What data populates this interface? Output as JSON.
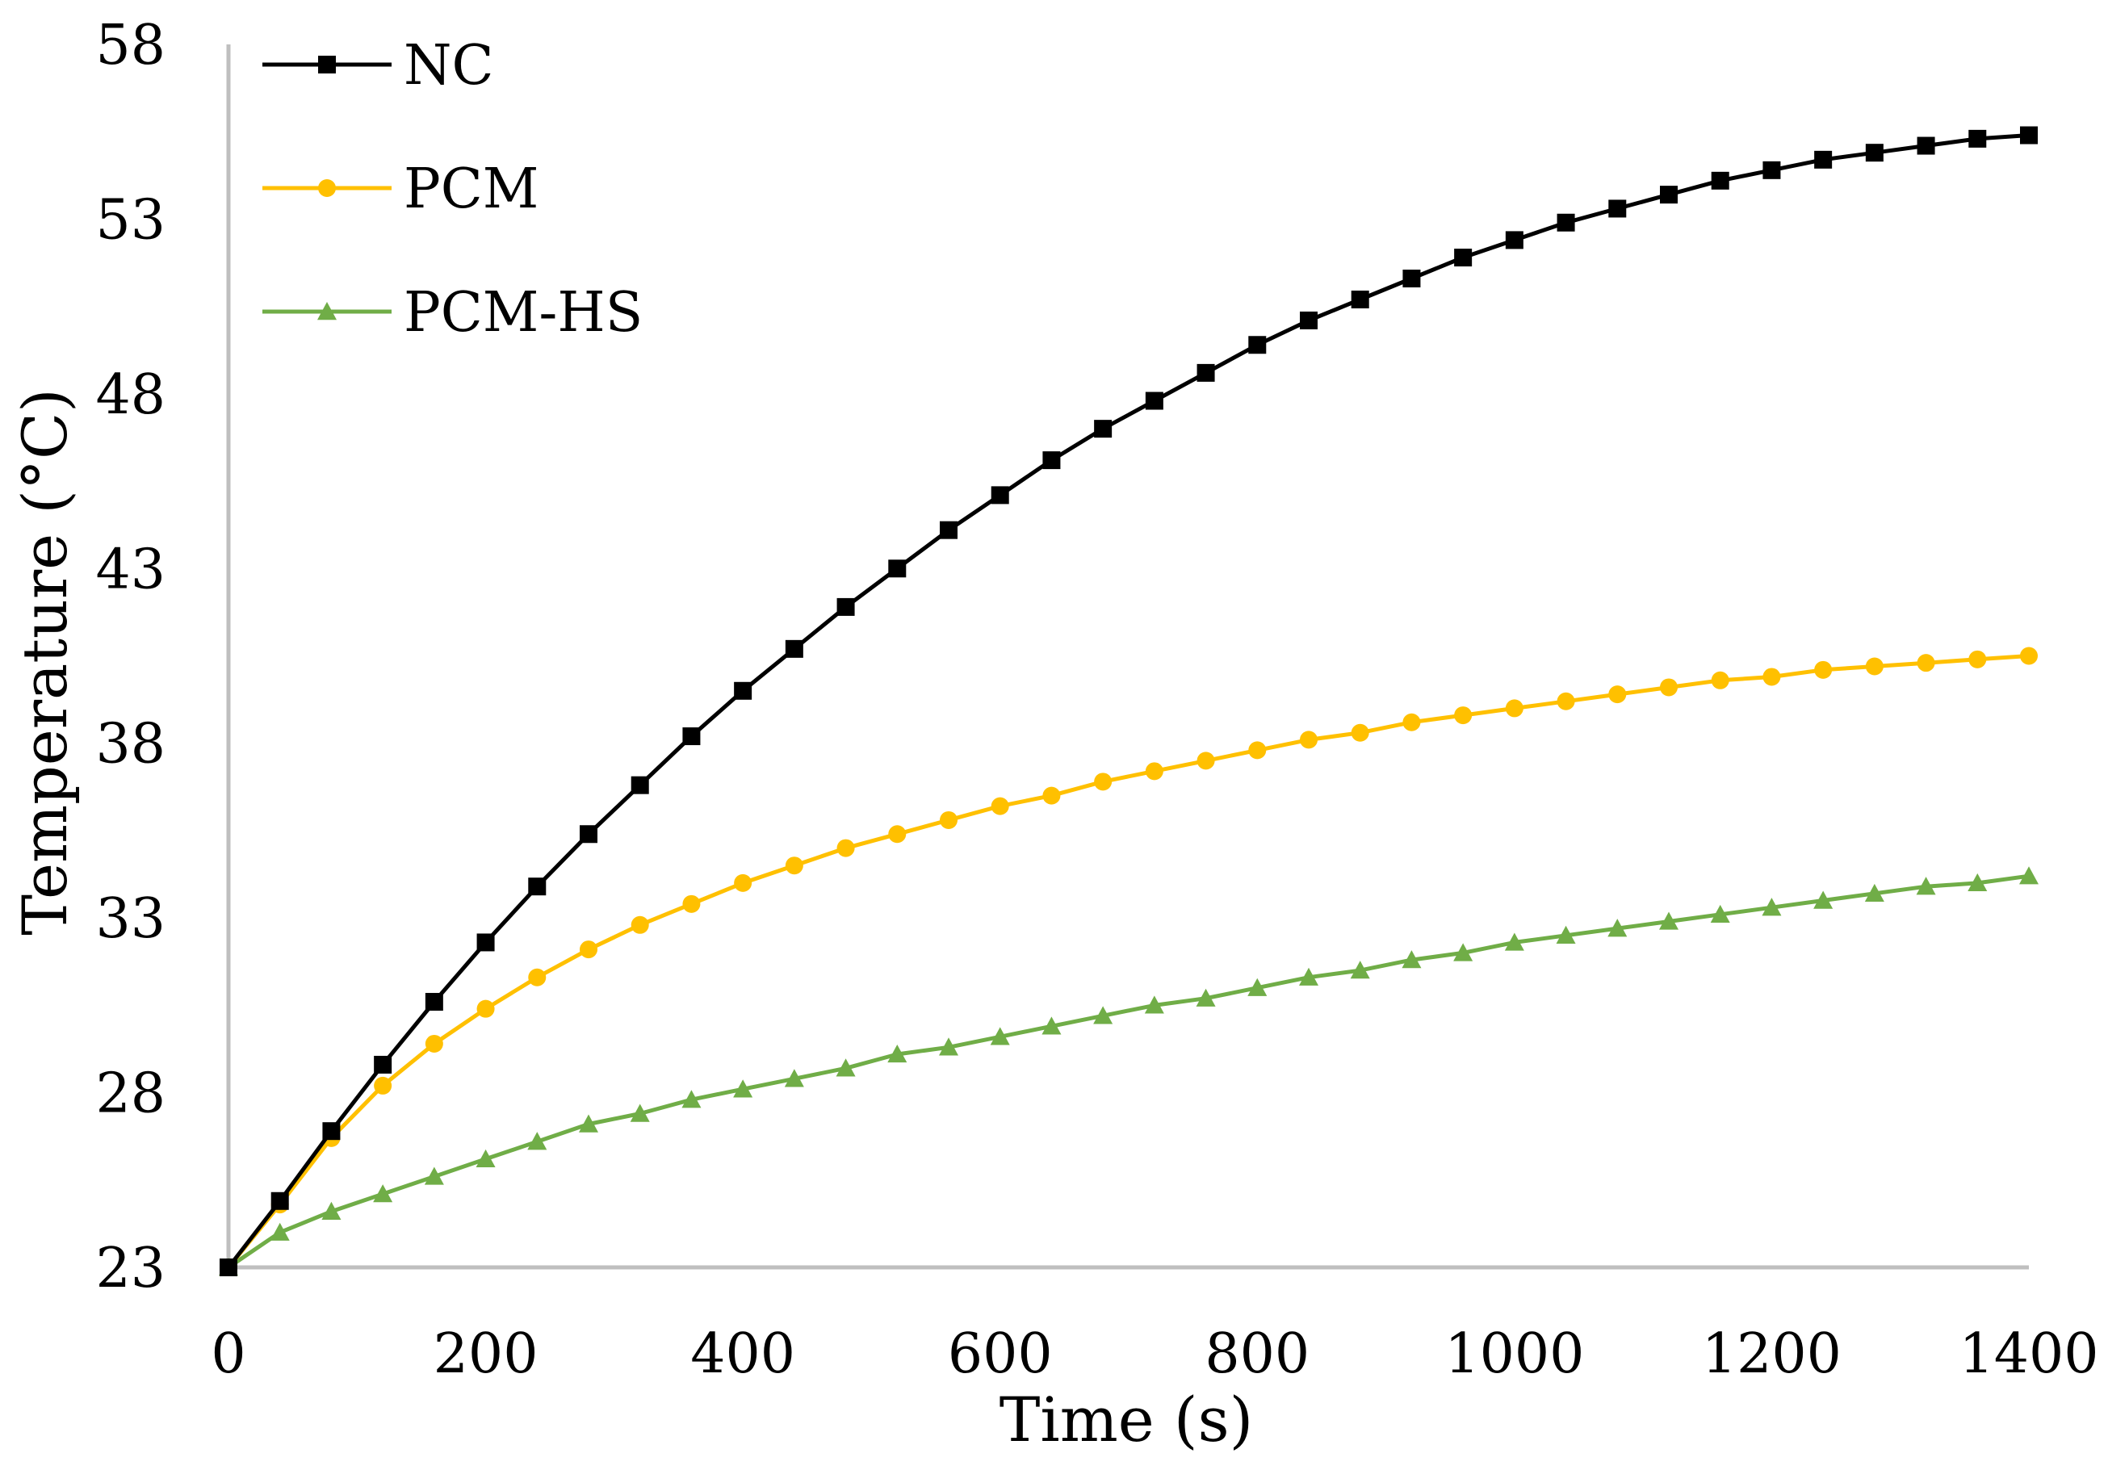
{
  "chart_data": {
    "type": "line",
    "title": "",
    "xlabel": "Time (s)",
    "ylabel": "Temperature (°C)",
    "xlim": [
      0,
      1400
    ],
    "ylim": [
      23,
      58
    ],
    "xticks": [
      0,
      200,
      400,
      600,
      800,
      1000,
      1200,
      1400
    ],
    "yticks": [
      23,
      28,
      33,
      38,
      43,
      48,
      53,
      58
    ],
    "grid": false,
    "legend_position": "top-left",
    "x": [
      0,
      40,
      80,
      120,
      160,
      200,
      240,
      280,
      320,
      360,
      400,
      440,
      480,
      520,
      560,
      600,
      640,
      680,
      720,
      760,
      800,
      840,
      880,
      920,
      960,
      1000,
      1040,
      1080,
      1120,
      1160,
      1200,
      1240,
      1280,
      1320,
      1360,
      1400
    ],
    "series": [
      {
        "name": "NC",
        "color": "#000000",
        "marker": "square",
        "values": [
          23.0,
          24.9,
          26.9,
          28.8,
          30.6,
          32.3,
          33.9,
          35.4,
          36.8,
          38.2,
          39.5,
          40.7,
          41.9,
          43.0,
          44.1,
          45.1,
          46.1,
          47.0,
          47.8,
          48.6,
          49.4,
          50.1,
          50.7,
          51.3,
          51.9,
          52.4,
          52.9,
          53.3,
          53.7,
          54.1,
          54.4,
          54.7,
          54.9,
          55.1,
          55.3,
          55.4
        ]
      },
      {
        "name": "PCM",
        "color": "#FFC000",
        "marker": "circle",
        "values": [
          23.0,
          24.8,
          26.7,
          28.2,
          29.4,
          30.4,
          31.3,
          32.1,
          32.8,
          33.4,
          34.0,
          34.5,
          35.0,
          35.4,
          35.8,
          36.2,
          36.5,
          36.9,
          37.2,
          37.5,
          37.8,
          38.1,
          38.3,
          38.6,
          38.8,
          39.0,
          39.2,
          39.4,
          39.6,
          39.8,
          39.9,
          40.1,
          40.2,
          40.3,
          40.4,
          40.5
        ]
      },
      {
        "name": "PCM-HS",
        "color": "#70AD47",
        "marker": "triangle",
        "values": [
          23.0,
          24.0,
          24.6,
          25.1,
          25.6,
          26.1,
          26.6,
          27.1,
          27.4,
          27.8,
          28.1,
          28.4,
          28.7,
          29.1,
          29.3,
          29.6,
          29.9,
          30.2,
          30.5,
          30.7,
          31.0,
          31.3,
          31.5,
          31.8,
          32.0,
          32.3,
          32.5,
          32.7,
          32.9,
          33.1,
          33.3,
          33.5,
          33.7,
          33.9,
          34.0,
          34.2
        ]
      }
    ]
  }
}
